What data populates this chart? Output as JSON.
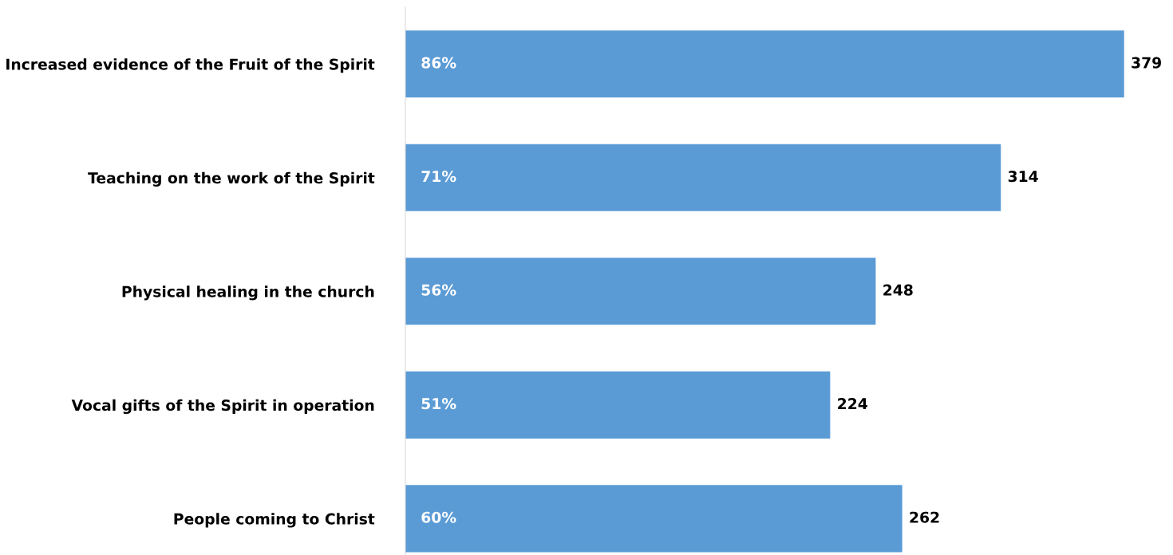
{
  "chart_data": {
    "type": "bar",
    "orientation": "horizontal",
    "categories": [
      "Increased evidence of the Fruit of the Spirit",
      "Teaching on the work of the Spirit",
      "Physical healing in the church",
      "Vocal gifts of the Spirit in operation",
      "People coming to Christ"
    ],
    "values": [
      379,
      314,
      248,
      224,
      262
    ],
    "color": "#5b9bd5",
    "data_labels": true,
    "tick_labels": "y",
    "grid": false,
    "legend": false,
    "annotations": [
      "86%",
      "71%",
      "56%",
      "51%",
      "60%"
    ]
  }
}
